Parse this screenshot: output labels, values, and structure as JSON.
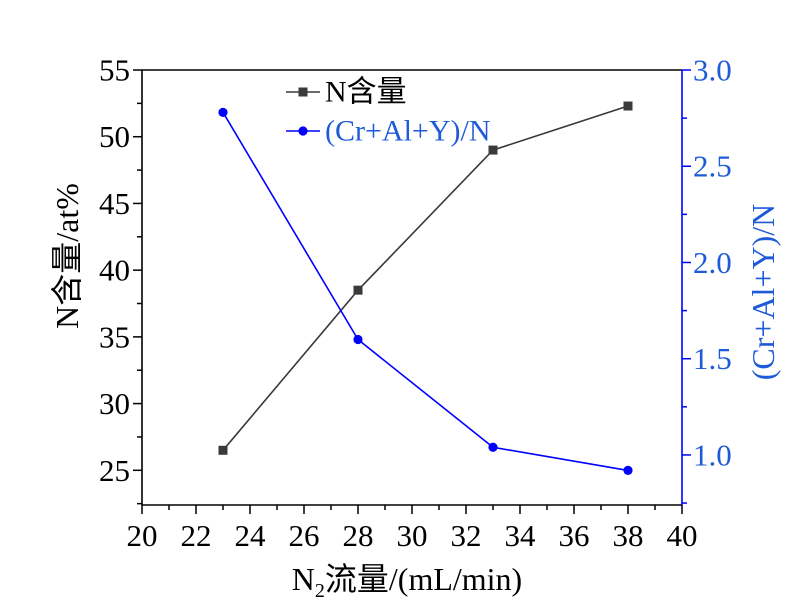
{
  "chart_data": {
    "type": "line",
    "x": [
      23,
      28,
      33,
      38
    ],
    "xlim": [
      20,
      40
    ],
    "xticks": [
      20,
      22,
      24,
      26,
      28,
      30,
      32,
      34,
      36,
      38,
      40
    ],
    "xlabel": {
      "main": "N",
      "sub": "2",
      "rest": "流量/(mL/min)"
    },
    "ylabel_left": "N含量/at%",
    "ylim_left": [
      22.4,
      55
    ],
    "yticks_left": [
      25,
      30,
      35,
      40,
      45,
      50,
      55
    ],
    "ylabel_right": "(Cr+Al+Y)/N",
    "ylim_right": [
      0.74,
      3.0
    ],
    "yticks_right": [
      "1.0",
      "1.5",
      "2.0",
      "2.5",
      "3.0"
    ],
    "series": [
      {
        "name": "N含量",
        "axis": "left",
        "values": [
          26.5,
          38.5,
          49.0,
          52.3
        ],
        "color": "#3a3a3a",
        "marker": "square"
      },
      {
        "name": "(Cr+Al+Y)/N",
        "axis": "right",
        "values": [
          2.78,
          1.6,
          1.04,
          0.92
        ],
        "color": "#0000ff",
        "marker": "circle"
      }
    ],
    "legend": "top-left",
    "grid": false
  },
  "colors": {
    "axis_left": "#000000",
    "axis_right": "#0000ff",
    "right_axis_text": "#1f5bd8"
  }
}
